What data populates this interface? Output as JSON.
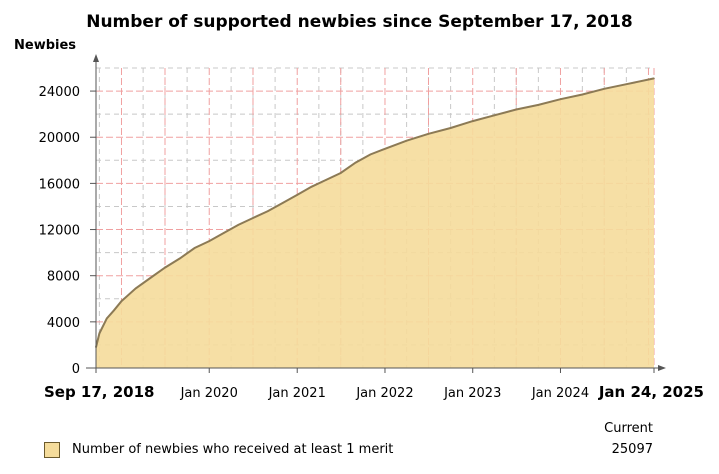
{
  "chart_data": {
    "type": "area",
    "title": "Number of supported newbies since September 17, 2018",
    "ylabel": "Newbies",
    "xlabel": "",
    "ylim": [
      0,
      26000
    ],
    "y_ticks": [
      0,
      4000,
      8000,
      12000,
      16000,
      20000,
      24000
    ],
    "y_tick_labels": [
      "0",
      "4000",
      "8000",
      "12000",
      "16000",
      "20000",
      "24000"
    ],
    "x_range": [
      "2018-09-17",
      "2025-01-24"
    ],
    "x_ticks": [
      {
        "date": "2018-09-17",
        "label": "Sep 17, 2018",
        "bold": true
      },
      {
        "date": "2020-01-01",
        "label": "Jan 2020",
        "bold": false
      },
      {
        "date": "2021-01-01",
        "label": "Jan 2021",
        "bold": false
      },
      {
        "date": "2022-01-01",
        "label": "Jan 2022",
        "bold": false
      },
      {
        "date": "2023-01-01",
        "label": "Jan 2023",
        "bold": false
      },
      {
        "date": "2024-01-01",
        "label": "Jan 2024",
        "bold": false
      },
      {
        "date": "2025-01-24",
        "label": "Jan 24, 2025",
        "bold": true
      }
    ],
    "grid": true,
    "legend_position": "bottom-left",
    "series": [
      {
        "name": "Number of newbies who received at least 1 merit",
        "color": "#f5dc9b",
        "line_color": "#8c7a55",
        "points": [
          {
            "x": "2018-09-17",
            "y": 1800
          },
          {
            "x": "2018-10-01",
            "y": 3000
          },
          {
            "x": "2018-11-01",
            "y": 4300
          },
          {
            "x": "2018-12-01",
            "y": 5000
          },
          {
            "x": "2019-01-01",
            "y": 5800
          },
          {
            "x": "2019-03-01",
            "y": 6900
          },
          {
            "x": "2019-05-01",
            "y": 7800
          },
          {
            "x": "2019-07-01",
            "y": 8700
          },
          {
            "x": "2019-09-01",
            "y": 9500
          },
          {
            "x": "2019-11-01",
            "y": 10400
          },
          {
            "x": "2020-01-01",
            "y": 11000
          },
          {
            "x": "2020-03-01",
            "y": 11700
          },
          {
            "x": "2020-05-01",
            "y": 12400
          },
          {
            "x": "2020-07-01",
            "y": 13000
          },
          {
            "x": "2020-09-01",
            "y": 13600
          },
          {
            "x": "2020-11-01",
            "y": 14300
          },
          {
            "x": "2021-01-01",
            "y": 15000
          },
          {
            "x": "2021-03-01",
            "y": 15700
          },
          {
            "x": "2021-05-01",
            "y": 16300
          },
          {
            "x": "2021-07-01",
            "y": 16900
          },
          {
            "x": "2021-09-01",
            "y": 17800
          },
          {
            "x": "2021-11-01",
            "y": 18500
          },
          {
            "x": "2022-01-01",
            "y": 19000
          },
          {
            "x": "2022-04-01",
            "y": 19700
          },
          {
            "x": "2022-07-01",
            "y": 20300
          },
          {
            "x": "2022-10-01",
            "y": 20800
          },
          {
            "x": "2023-01-01",
            "y": 21400
          },
          {
            "x": "2023-04-01",
            "y": 21900
          },
          {
            "x": "2023-07-01",
            "y": 22400
          },
          {
            "x": "2023-10-01",
            "y": 22800
          },
          {
            "x": "2024-01-01",
            "y": 23300
          },
          {
            "x": "2024-04-01",
            "y": 23700
          },
          {
            "x": "2024-07-01",
            "y": 24200
          },
          {
            "x": "2024-10-01",
            "y": 24600
          },
          {
            "x": "2025-01-24",
            "y": 25097
          }
        ]
      }
    ]
  },
  "legend": {
    "label": "Number of newbies who received at least 1 merit",
    "current_header": "Current",
    "current_value": "25097"
  }
}
